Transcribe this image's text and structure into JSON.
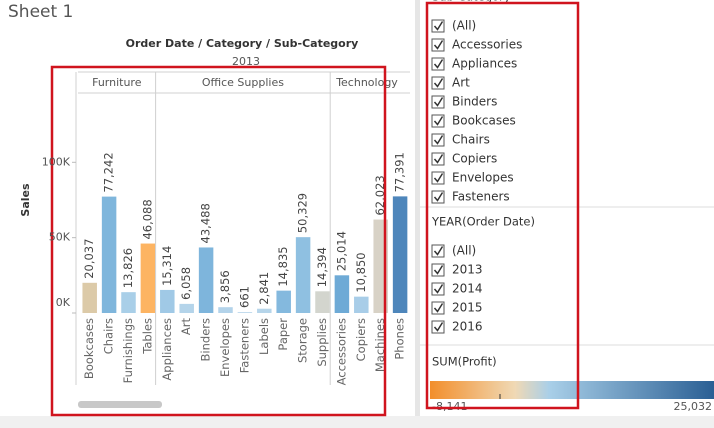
{
  "sheet": {
    "title": "Sheet 1"
  },
  "chart_data": {
    "type": "bar",
    "title": "Order Date / Category / Sub-Category",
    "subtitle": "2013",
    "y_label": "Sales",
    "ylim": [
      0,
      146000
    ],
    "yticks": [
      {
        "value": 0,
        "label": "0K"
      },
      {
        "value": 50000,
        "label": "50K"
      },
      {
        "value": 100000,
        "label": "100K"
      }
    ],
    "groups": [
      {
        "name": "Furniture",
        "categories": [
          "Bookcases",
          "Chairs",
          "Furnishings",
          "Tables"
        ],
        "values": [
          20037,
          77242,
          13826,
          46088
        ],
        "value_labels": [
          "20,037",
          "77,242",
          "13,826",
          "46,088"
        ],
        "colors": [
          "#dccaa8",
          "#7fb6dc",
          "#a9cfe8",
          "#fdb462"
        ]
      },
      {
        "name": "Office Supplies",
        "categories": [
          "Appliances",
          "Art",
          "Binders",
          "Envelopes",
          "Fasteners",
          "Labels",
          "Paper",
          "Storage",
          "Supplies"
        ],
        "values": [
          15314,
          6058,
          43488,
          3856,
          661,
          2841,
          14835,
          50329,
          14394
        ],
        "value_labels": [
          "15,314",
          "6,058",
          "43,488",
          "3,856",
          "661",
          "2,841",
          "14,835",
          "50,329",
          "14,394"
        ],
        "colors": [
          "#a0c9e6",
          "#b4d4ea",
          "#7eb5dc",
          "#b3d3ea",
          "#c3dcee",
          "#b6d5ea",
          "#84b9de",
          "#8fc0e1",
          "#d3d5ce"
        ]
      },
      {
        "name": "Technology",
        "categories": [
          "Accessories",
          "Copiers",
          "Machines",
          "Phones"
        ],
        "values": [
          25014,
          10850,
          62023,
          77391
        ],
        "value_labels": [
          "25,014",
          "10,850",
          "62,023",
          "77,391"
        ],
        "colors": [
          "#6eaad6",
          "#a8cde8",
          "#d8d2c6",
          "#4e86bb"
        ]
      }
    ]
  },
  "filters": [
    {
      "title": "Sub-Category",
      "items": [
        "(All)",
        "Accessories",
        "Appliances",
        "Art",
        "Binders",
        "Bookcases",
        "Chairs",
        "Copiers",
        "Envelopes",
        "Fasteners"
      ]
    },
    {
      "title": "YEAR(Order Date)",
      "items": [
        "(All)",
        "2013",
        "2014",
        "2015",
        "2016"
      ]
    }
  ],
  "legend": {
    "title": "SUM(Profit)",
    "min_label": "-8,141",
    "max_label": "25,032"
  }
}
